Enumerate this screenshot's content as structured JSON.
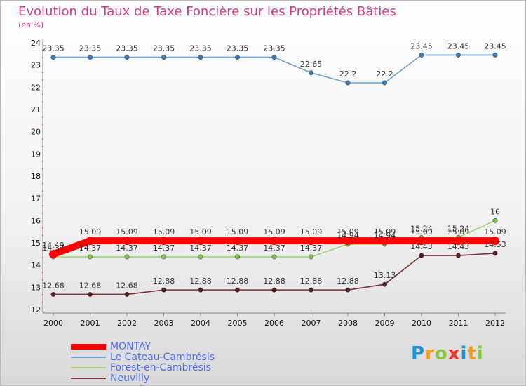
{
  "header": {
    "title": "Evolution du Taux de Taxe Foncière sur les Propriétés Bâties",
    "unit": "(en %)"
  },
  "brand": {
    "text": "Proxiti",
    "colors": [
      "#1f8fd6",
      "#f39a1d",
      "#8bc43f",
      "#e4352b",
      "#1f8fd6",
      "#f39a1d",
      "#8bc43f"
    ]
  },
  "chart_data": {
    "type": "line",
    "title": "Evolution du Taux de Taxe Foncière sur les Propriétés Bâties",
    "ylabel": "(en %)",
    "xlabel": "",
    "ylim": [
      12,
      24
    ],
    "yticks": [
      12,
      13,
      14,
      15,
      16,
      17,
      18,
      19,
      20,
      21,
      22,
      23,
      24
    ],
    "categories": [
      "2000",
      "2001",
      "2002",
      "2003",
      "2004",
      "2005",
      "2006",
      "2007",
      "2008",
      "2009",
      "2010",
      "2011",
      "2012"
    ],
    "legend_position": "bottom-left",
    "series": [
      {
        "name": "Le Cateau-Cambrésis",
        "color": "#6a9fd0",
        "marker": "#3d7ab8",
        "values": [
          23.35,
          23.35,
          23.35,
          23.35,
          23.35,
          23.35,
          23.35,
          22.65,
          22.2,
          22.2,
          23.45,
          23.45,
          23.45
        ],
        "labels": [
          "23.35",
          "23.35",
          "23.35",
          "23.35",
          "23.35",
          "23.35",
          "23.35",
          "22.65",
          "22.2",
          "22.2",
          "23.45",
          "23.45",
          "23.45"
        ]
      },
      {
        "name": "Forest-en-Cambrésis",
        "color": "#9ed66e",
        "marker": "#7cc34a",
        "values": [
          14.37,
          14.37,
          14.37,
          14.37,
          14.37,
          14.37,
          14.37,
          14.37,
          14.94,
          14.94,
          15.24,
          15.24,
          16
        ],
        "labels": [
          "14.37",
          "14.37",
          "14.37",
          "14.37",
          "14.37",
          "14.37",
          "14.37",
          "14.37",
          "14.94",
          "14.94",
          "15.24",
          "15.24",
          "16"
        ]
      },
      {
        "name": "Neuvilly",
        "color": "#7a2e2e",
        "marker": "#5a1e1e",
        "values": [
          12.68,
          12.68,
          12.68,
          12.88,
          12.88,
          12.88,
          12.88,
          12.88,
          12.88,
          13.13,
          14.43,
          14.43,
          14.53
        ],
        "labels": [
          "12.68",
          "12.68",
          "12.68",
          "12.88",
          "12.88",
          "12.88",
          "12.88",
          "12.88",
          "12.88",
          "13.13",
          "14.43",
          "14.43",
          "14.53"
        ]
      },
      {
        "name": "MONTAY",
        "color": "#ff0000",
        "marker": "#ff0000",
        "bold": true,
        "values": [
          14.49,
          15.09,
          15.09,
          15.09,
          15.09,
          15.09,
          15.09,
          15.09,
          15.09,
          15.09,
          15.09,
          15.09,
          15.09
        ],
        "labels": [
          "14.49",
          "15.09",
          "15.09",
          "15.09",
          "15.09",
          "15.09",
          "15.09",
          "15.09",
          "15.09",
          "15.09",
          "15.09",
          "15.09",
          "15.09"
        ]
      }
    ]
  }
}
